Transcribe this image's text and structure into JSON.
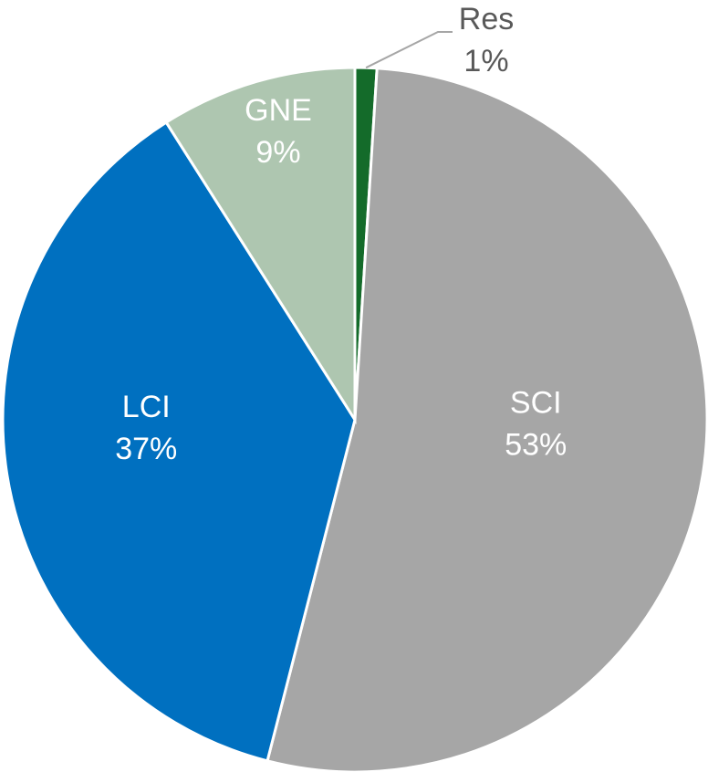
{
  "chart_data": {
    "type": "pie",
    "categories": [
      "Res",
      "SCI",
      "LCI",
      "GNE"
    ],
    "values": [
      1,
      53,
      37,
      9
    ],
    "value_labels": [
      "1%",
      "53%",
      "37%",
      "9%"
    ],
    "colors": [
      "#146b2a",
      "#a6a6a6",
      "#0070c0",
      "#aec6b0"
    ]
  }
}
